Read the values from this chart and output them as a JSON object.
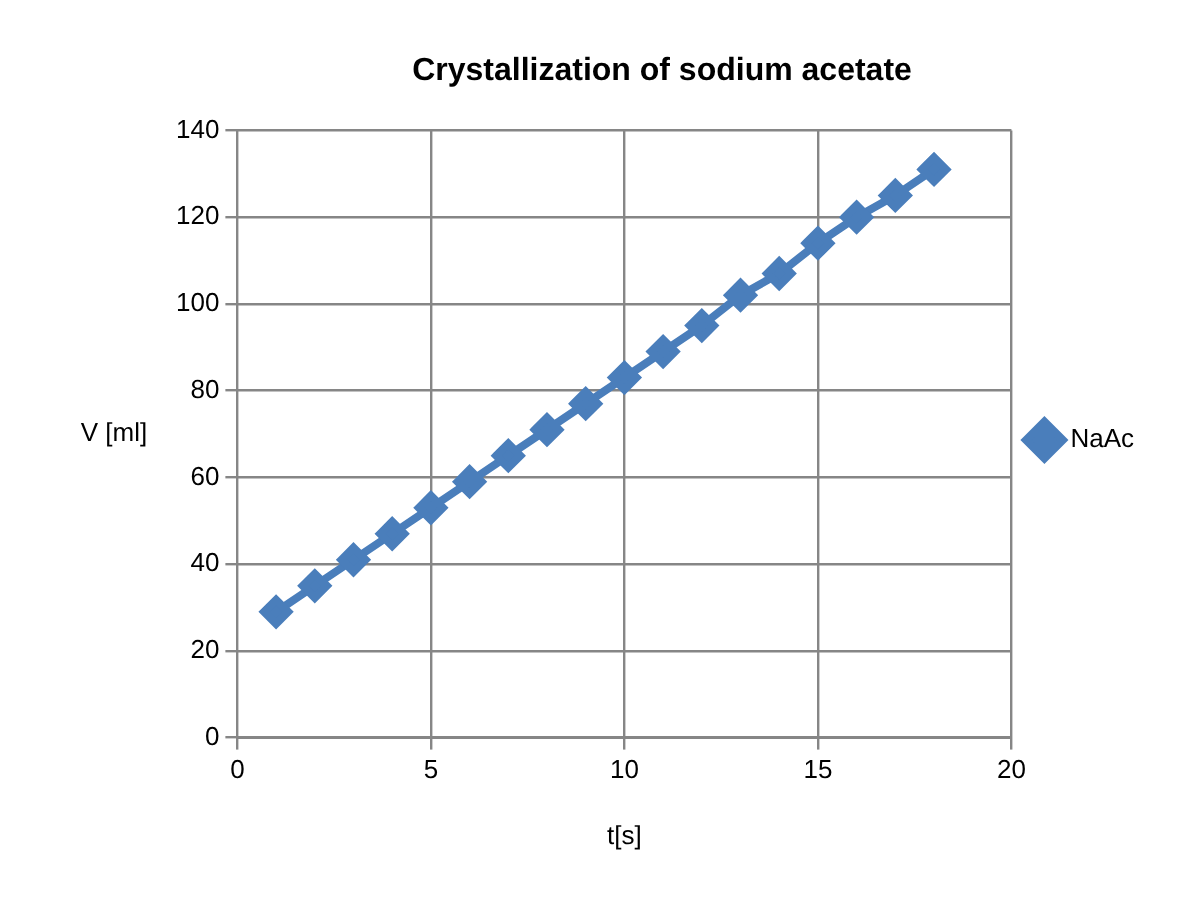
{
  "chart_data": {
    "type": "line",
    "title": "Crystallization of sodium acetate",
    "xlabel": "t[s]",
    "ylabel": "V [ml]",
    "x": [
      1,
      2,
      3,
      4,
      5,
      6,
      7,
      8,
      9,
      10,
      11,
      12,
      13,
      14,
      15,
      16,
      17,
      18
    ],
    "series": [
      {
        "name": "NaAc",
        "color": "#4a7ebb",
        "values": [
          29,
          35,
          41,
          47,
          53,
          59,
          65,
          71,
          77,
          83,
          89,
          95,
          102,
          107,
          114,
          120,
          125,
          131
        ]
      }
    ],
    "xlim": [
      0,
      20
    ],
    "xticks": [
      0,
      5,
      10,
      15,
      20
    ],
    "ylim": [
      0,
      140
    ],
    "yticks": [
      0,
      20,
      40,
      60,
      80,
      100,
      120,
      140
    ],
    "grid": true,
    "legend": "right",
    "marker": "diamond",
    "line_style": "solid"
  }
}
